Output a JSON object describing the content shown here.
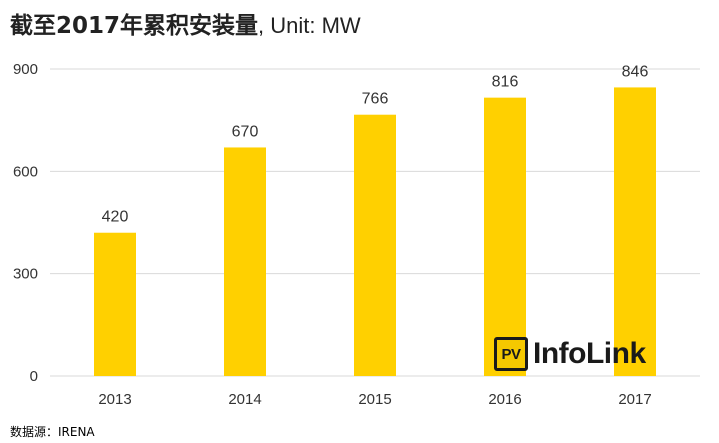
{
  "title": {
    "bold_part": "截至2017年累积安装量",
    "unit_part": ", Unit: MW"
  },
  "source": "数据源：IRENA",
  "logo": {
    "badge": "PV",
    "text": "InfoLink"
  },
  "colors": {
    "bar": "#FFD000",
    "grid": "#D9D9D9",
    "axis_text": "#333333"
  },
  "chart_data": {
    "type": "bar",
    "categories": [
      "2013",
      "2014",
      "2015",
      "2016",
      "2017"
    ],
    "values": [
      420,
      670,
      766,
      816,
      846
    ],
    "title": "截至2017年累积安装量, Unit: MW",
    "xlabel": "",
    "ylabel": "",
    "ylim": [
      0,
      900
    ],
    "yticks": [
      0,
      300,
      600,
      900
    ],
    "data_labels": true,
    "grid": true,
    "legend": "none"
  }
}
